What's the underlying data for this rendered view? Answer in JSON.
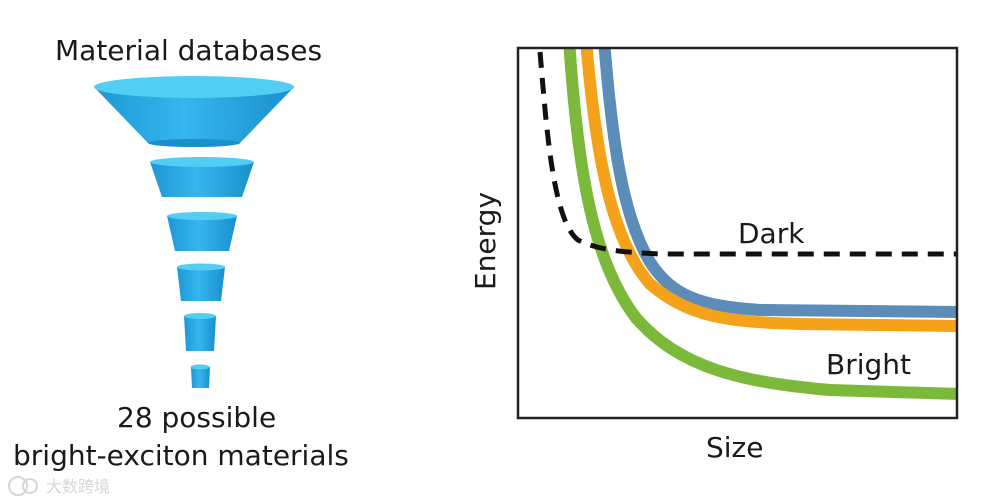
{
  "funnel": {
    "title": "Material databases",
    "result_line1": "28 possible",
    "result_line2": "bright-exciton materials",
    "color_light": "#4cc9f0",
    "color_dark": "#1a9ad6",
    "stages": 6
  },
  "plot": {
    "xlabel": "Size",
    "ylabel": "Energy",
    "label_dark": "Dark",
    "label_bright": "Bright",
    "colors": {
      "dark": "#111111",
      "blue": "#5b8db8",
      "orange": "#f5a21b",
      "green": "#7cb93a",
      "frame": "#222222"
    }
  },
  "watermark": {
    "text": "大数跨境",
    "logo_icon": "brand-logo-icon"
  }
}
